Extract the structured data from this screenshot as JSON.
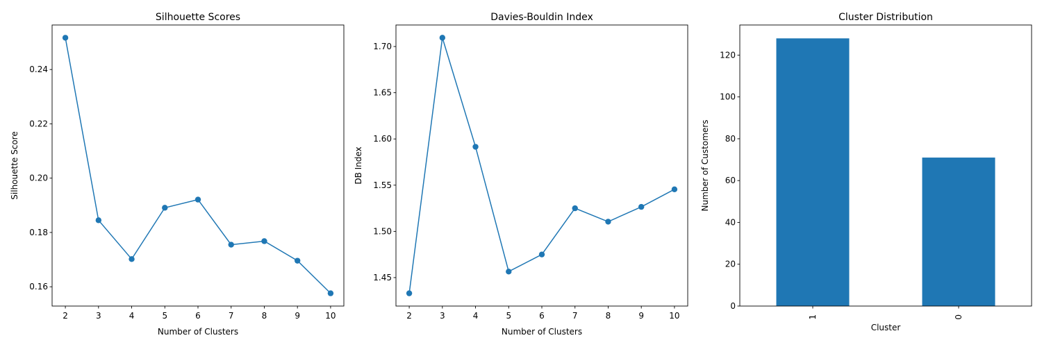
{
  "figure": {
    "background": "#ffffff",
    "series_color": "#1f77b4"
  },
  "chart_data": [
    {
      "type": "line",
      "title": "Silhouette Scores",
      "xlabel": "Number of Clusters",
      "ylabel": "Silhouette Score",
      "x": [
        2,
        3,
        4,
        5,
        6,
        7,
        8,
        9,
        10
      ],
      "series": [
        {
          "values": [
            0.2517,
            0.1845,
            0.1702,
            0.1891,
            0.1921,
            0.1755,
            0.1768,
            0.1696,
            0.1576
          ]
        }
      ],
      "xticks": [
        2,
        3,
        4,
        5,
        6,
        7,
        8,
        9,
        10
      ],
      "yticks": [
        0.16,
        0.18,
        0.2,
        0.22,
        0.24
      ],
      "ytick_labels": [
        "0.16",
        "0.18",
        "0.20",
        "0.22",
        "0.24"
      ],
      "xlim": [
        1.6,
        10.4
      ],
      "ylim": [
        0.1529,
        0.2564
      ],
      "marker": "circle",
      "grid": false
    },
    {
      "type": "line",
      "title": "Davies-Bouldin Index",
      "xlabel": "Number of Clusters",
      "ylabel": "DB Index",
      "x": [
        2,
        3,
        4,
        5,
        6,
        7,
        8,
        9,
        10
      ],
      "series": [
        {
          "values": [
            1.433,
            1.7095,
            1.5915,
            1.4565,
            1.475,
            1.525,
            1.5105,
            1.5265,
            1.5455
          ]
        }
      ],
      "xticks": [
        2,
        3,
        4,
        5,
        6,
        7,
        8,
        9,
        10
      ],
      "yticks": [
        1.45,
        1.5,
        1.55,
        1.6,
        1.65,
        1.7
      ],
      "ytick_labels": [
        "1.45",
        "1.50",
        "1.55",
        "1.60",
        "1.65",
        "1.70"
      ],
      "xlim": [
        1.6,
        10.4
      ],
      "ylim": [
        1.4192,
        1.7233
      ],
      "marker": "circle",
      "grid": false
    },
    {
      "type": "bar",
      "title": "Cluster Distribution",
      "xlabel": "Cluster",
      "ylabel": "Number of Customers",
      "categories": [
        "1",
        "0"
      ],
      "values": [
        128,
        71
      ],
      "yticks": [
        0,
        20,
        40,
        60,
        80,
        100,
        120
      ],
      "ytick_labels": [
        "0",
        "20",
        "40",
        "60",
        "80",
        "100",
        "120"
      ],
      "ylim": [
        0,
        134.4
      ],
      "xtick_rotation": 90,
      "grid": false
    }
  ]
}
